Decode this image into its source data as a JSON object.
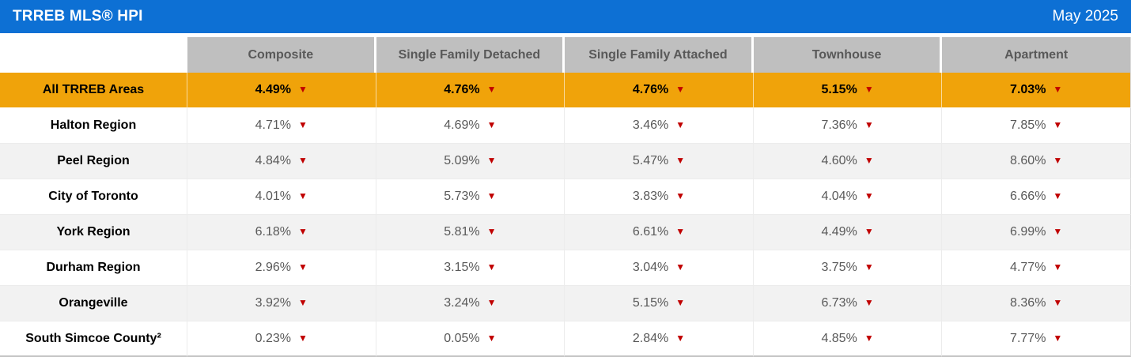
{
  "header": {
    "title": "TRREB MLS® HPI",
    "date": "May 2025"
  },
  "colors": {
    "topbar_blue": "#0d70d4",
    "column_header_gray": "#bfbfbf",
    "column_header_text": "#595959",
    "highlight_orange": "#f0a30a",
    "arrow_red": "#c00000",
    "zebra_gray": "#f2f2f2",
    "value_text_gray": "#595959"
  },
  "table": {
    "arrow_glyph": "▼",
    "columns": [
      "Composite",
      "Single Family Detached",
      "Single Family Attached",
      "Townhouse",
      "Apartment"
    ],
    "rows": [
      {
        "region": "All TRREB Areas",
        "highlight": true,
        "values": [
          "4.49%",
          "4.76%",
          "4.76%",
          "5.15%",
          "7.03%"
        ]
      },
      {
        "region": "Halton Region",
        "highlight": false,
        "values": [
          "4.71%",
          "4.69%",
          "3.46%",
          "7.36%",
          "7.85%"
        ]
      },
      {
        "region": "Peel Region",
        "highlight": false,
        "values": [
          "4.84%",
          "5.09%",
          "5.47%",
          "4.60%",
          "8.60%"
        ]
      },
      {
        "region": "City of Toronto",
        "highlight": false,
        "values": [
          "4.01%",
          "5.73%",
          "3.83%",
          "4.04%",
          "6.66%"
        ]
      },
      {
        "region": "York Region",
        "highlight": false,
        "values": [
          "6.18%",
          "5.81%",
          "6.61%",
          "4.49%",
          "6.99%"
        ]
      },
      {
        "region": "Durham Region",
        "highlight": false,
        "values": [
          "2.96%",
          "3.15%",
          "3.04%",
          "3.75%",
          "4.77%"
        ]
      },
      {
        "region": "Orangeville",
        "highlight": false,
        "values": [
          "3.92%",
          "3.24%",
          "5.15%",
          "6.73%",
          "8.36%"
        ]
      },
      {
        "region": "South Simcoe County²",
        "highlight": false,
        "values": [
          "0.23%",
          "0.05%",
          "2.84%",
          "4.85%",
          "7.77%"
        ]
      }
    ]
  },
  "chart_data": {
    "type": "table",
    "title": "TRREB MLS® HPI",
    "period": "May 2025",
    "columns": [
      "Composite",
      "Single Family Detached",
      "Single Family Attached",
      "Townhouse",
      "Apartment"
    ],
    "rows": [
      {
        "region": "All TRREB Areas",
        "values_pct": [
          4.49,
          4.76,
          4.76,
          5.15,
          7.03
        ],
        "direction": [
          "down",
          "down",
          "down",
          "down",
          "down"
        ]
      },
      {
        "region": "Halton Region",
        "values_pct": [
          4.71,
          4.69,
          3.46,
          7.36,
          7.85
        ],
        "direction": [
          "down",
          "down",
          "down",
          "down",
          "down"
        ]
      },
      {
        "region": "Peel Region",
        "values_pct": [
          4.84,
          5.09,
          5.47,
          4.6,
          8.6
        ],
        "direction": [
          "down",
          "down",
          "down",
          "down",
          "down"
        ]
      },
      {
        "region": "City of Toronto",
        "values_pct": [
          4.01,
          5.73,
          3.83,
          4.04,
          6.66
        ],
        "direction": [
          "down",
          "down",
          "down",
          "down",
          "down"
        ]
      },
      {
        "region": "York Region",
        "values_pct": [
          6.18,
          5.81,
          6.61,
          4.49,
          6.99
        ],
        "direction": [
          "down",
          "down",
          "down",
          "down",
          "down"
        ]
      },
      {
        "region": "Durham Region",
        "values_pct": [
          2.96,
          3.15,
          3.04,
          3.75,
          4.77
        ],
        "direction": [
          "down",
          "down",
          "down",
          "down",
          "down"
        ]
      },
      {
        "region": "Orangeville",
        "values_pct": [
          3.92,
          3.24,
          5.15,
          6.73,
          8.36
        ],
        "direction": [
          "down",
          "down",
          "down",
          "down",
          "down"
        ]
      },
      {
        "region": "South Simcoe County²",
        "values_pct": [
          0.23,
          0.05,
          2.84,
          4.85,
          7.77
        ],
        "direction": [
          "down",
          "down",
          "down",
          "down",
          "down"
        ]
      }
    ]
  }
}
